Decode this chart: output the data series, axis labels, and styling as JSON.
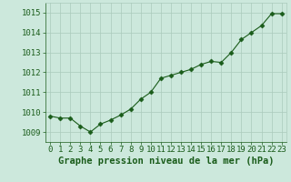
{
  "x": [
    0,
    1,
    2,
    3,
    4,
    5,
    6,
    7,
    8,
    9,
    10,
    11,
    12,
    13,
    14,
    15,
    16,
    17,
    18,
    19,
    20,
    21,
    22,
    23
  ],
  "y": [
    1009.8,
    1009.7,
    1009.7,
    1009.3,
    1009.0,
    1009.4,
    1009.6,
    1009.85,
    1010.15,
    1010.65,
    1011.0,
    1011.7,
    1011.85,
    1012.0,
    1012.15,
    1012.4,
    1012.55,
    1012.5,
    1013.0,
    1013.65,
    1014.0,
    1014.35,
    1014.95,
    1014.95
  ],
  "line_color": "#1a5c1a",
  "marker": "D",
  "marker_size": 2.5,
  "bg_color": "#cce8dc",
  "grid_color": "#aacabc",
  "xlabel": "Graphe pression niveau de la mer (hPa)",
  "xlabel_color": "#1a5c1a",
  "xlabel_fontsize": 7.5,
  "tick_color": "#1a5c1a",
  "tick_fontsize": 6.5,
  "ylim": [
    1008.5,
    1015.5
  ],
  "yticks": [
    1009,
    1010,
    1011,
    1012,
    1013,
    1014,
    1015
  ],
  "xlim": [
    -0.5,
    23.5
  ],
  "xticks": [
    0,
    1,
    2,
    3,
    4,
    5,
    6,
    7,
    8,
    9,
    10,
    11,
    12,
    13,
    14,
    15,
    16,
    17,
    18,
    19,
    20,
    21,
    22,
    23
  ]
}
